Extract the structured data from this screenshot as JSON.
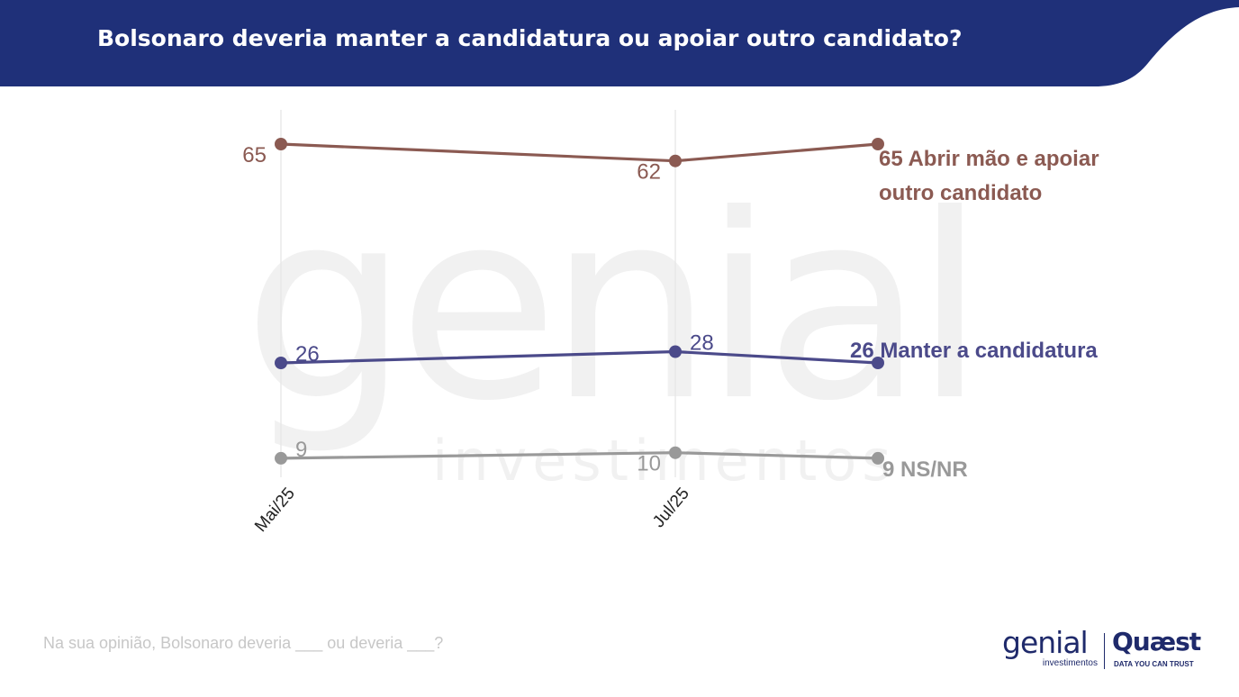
{
  "header": {
    "title": "Bolsonaro deveria manter a candidatura ou apoiar outro candidato?"
  },
  "colors": {
    "header_bg": "#1f3079",
    "series_abrir": "#8b5a52",
    "series_manter": "#4b4a8a",
    "series_nsnr": "#999999"
  },
  "watermark": {
    "word": "genial",
    "subword": "investimentos"
  },
  "chart_data": {
    "type": "line",
    "x": [
      "Mai/25",
      "Jul/25",
      ""
    ],
    "ylim": [
      0,
      70
    ],
    "grid": "vertical",
    "series": [
      {
        "name": "Abrir mão e apoiar outro candidato",
        "values": [
          65,
          62,
          65
        ],
        "point_labels": [
          "65",
          "62",
          ""
        ],
        "end_label_value": "65",
        "end_label_lines": [
          "Abrir mão e apoiar",
          "outro candidato"
        ]
      },
      {
        "name": "Manter a candidatura",
        "values": [
          26,
          28,
          26
        ],
        "point_labels": [
          "26",
          "28",
          ""
        ],
        "end_label_value": "26",
        "end_label_lines": [
          "Manter a candidatura"
        ]
      },
      {
        "name": "NS/NR",
        "values": [
          9,
          10,
          9
        ],
        "point_labels": [
          "9",
          "10",
          ""
        ],
        "end_label_value": "9",
        "end_label_lines": [
          "NS/NR"
        ]
      }
    ]
  },
  "footnote": "Na sua opinião, Bolsonaro deveria ___ ou deveria ___?",
  "logos": {
    "genial": "genial",
    "genial_sub": "investimentos",
    "quaest": "Quæst",
    "quaest_sub": "DATA YOU CAN TRUST"
  }
}
